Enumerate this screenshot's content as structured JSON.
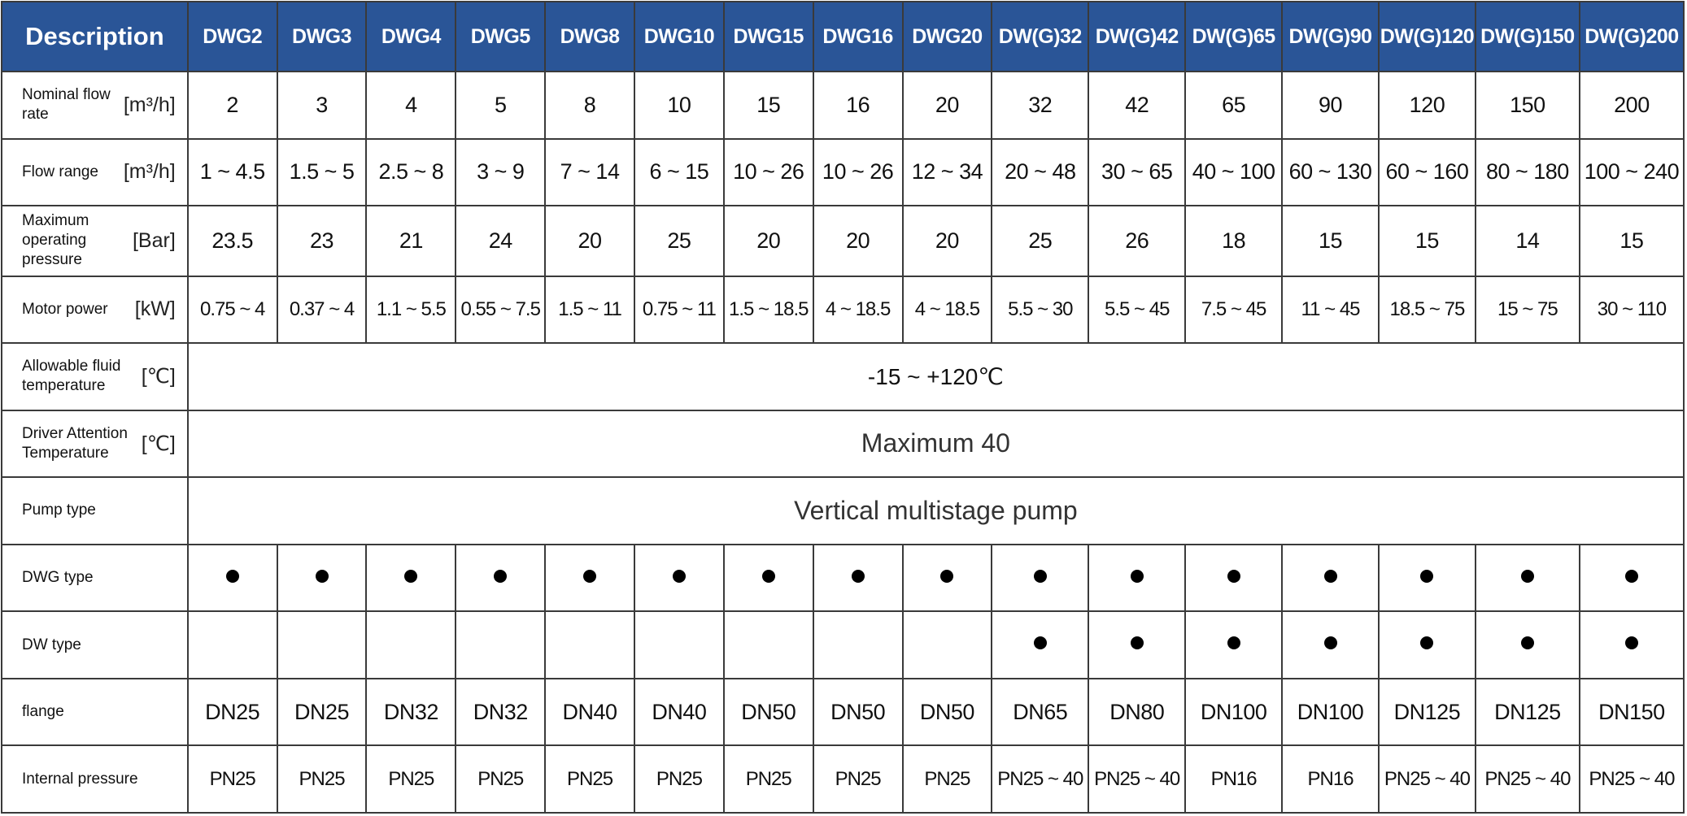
{
  "header": {
    "description": "Description",
    "models": [
      "DWG2",
      "DWG3",
      "DWG4",
      "DWG5",
      "DWG8",
      "DWG10",
      "DWG15",
      "DWG16",
      "DWG20",
      "DW(G)32",
      "DW(G)42",
      "DW(G)65",
      "DW(G)90",
      "DW(G)120",
      "DW(G)150",
      "DW(G)200"
    ]
  },
  "rows": {
    "nominal_flow": {
      "label": "Nominal flow rate",
      "unit": "[m³/h]",
      "values": [
        "2",
        "3",
        "4",
        "5",
        "8",
        "10",
        "15",
        "16",
        "20",
        "32",
        "42",
        "65",
        "90",
        "120",
        "150",
        "200"
      ]
    },
    "flow_range": {
      "label": "Flow range",
      "unit": "[m³/h]",
      "values": [
        "1 ~ 4.5",
        "1.5 ~ 5",
        "2.5 ~ 8",
        "3 ~ 9",
        "7 ~ 14",
        "6 ~ 15",
        "10 ~ 26",
        "10 ~ 26",
        "12 ~ 34",
        "20 ~ 48",
        "30 ~ 65",
        "40 ~ 100",
        "60 ~ 130",
        "60 ~ 160",
        "80 ~ 180",
        "100 ~ 240"
      ]
    },
    "max_pressure": {
      "label": "Maximum operating pressure",
      "unit": "[Bar]",
      "values": [
        "23.5",
        "23",
        "21",
        "24",
        "20",
        "25",
        "20",
        "20",
        "20",
        "25",
        "26",
        "18",
        "15",
        "15",
        "14",
        "15"
      ]
    },
    "motor_power": {
      "label": "Motor power",
      "unit": "[kW]",
      "values": [
        "0.75 ~ 4",
        "0.37 ~ 4",
        "1.1 ~ 5.5",
        "0.55 ~ 7.5",
        "1.5 ~ 11",
        "0.75 ~ 11",
        "1.5 ~ 18.5",
        "4 ~ 18.5",
        "4 ~ 18.5",
        "5.5 ~ 30",
        "5.5 ~ 45",
        "7.5 ~ 45",
        "11 ~ 45",
        "18.5 ~ 75",
        "15 ~ 75",
        "30 ~ 110"
      ]
    },
    "fluid_temp": {
      "label": "Allowable fluid temperature",
      "unit": "[℃]",
      "value": "-15 ~ +120℃"
    },
    "driver_temp": {
      "label": "Driver Attention Temperature",
      "unit": "[℃]",
      "value": "Maximum 40"
    },
    "pump_type": {
      "label": "Pump type",
      "value": "Vertical multistage pump"
    },
    "dwg_type": {
      "label": "DWG type",
      "marks": [
        true,
        true,
        true,
        true,
        true,
        true,
        true,
        true,
        true,
        true,
        true,
        true,
        true,
        true,
        true,
        true
      ]
    },
    "dw_type": {
      "label": "DW type",
      "marks": [
        false,
        false,
        false,
        false,
        false,
        false,
        false,
        false,
        false,
        true,
        true,
        true,
        true,
        true,
        true,
        true
      ]
    },
    "flange": {
      "label": "flange",
      "values": [
        "DN25",
        "DN25",
        "DN32",
        "DN32",
        "DN40",
        "DN40",
        "DN50",
        "DN50",
        "DN50",
        "DN65",
        "DN80",
        "DN100",
        "DN100",
        "DN125",
        "DN125",
        "DN150"
      ]
    },
    "internal_pressure": {
      "label": "Internal pressure",
      "values": [
        "PN25",
        "PN25",
        "PN25",
        "PN25",
        "PN25",
        "PN25",
        "PN25",
        "PN25",
        "PN25",
        "PN25 ~ 40",
        "PN25 ~ 40",
        "PN16",
        "PN16",
        "PN25 ~ 40",
        "PN25 ~ 40",
        "PN25 ~ 40"
      ]
    }
  },
  "colors": {
    "header_bg": "#2a5597",
    "header_text": "#ffffff",
    "border": "#3a3a3a"
  },
  "icons": {
    "mark": "filled-circle-icon"
  }
}
